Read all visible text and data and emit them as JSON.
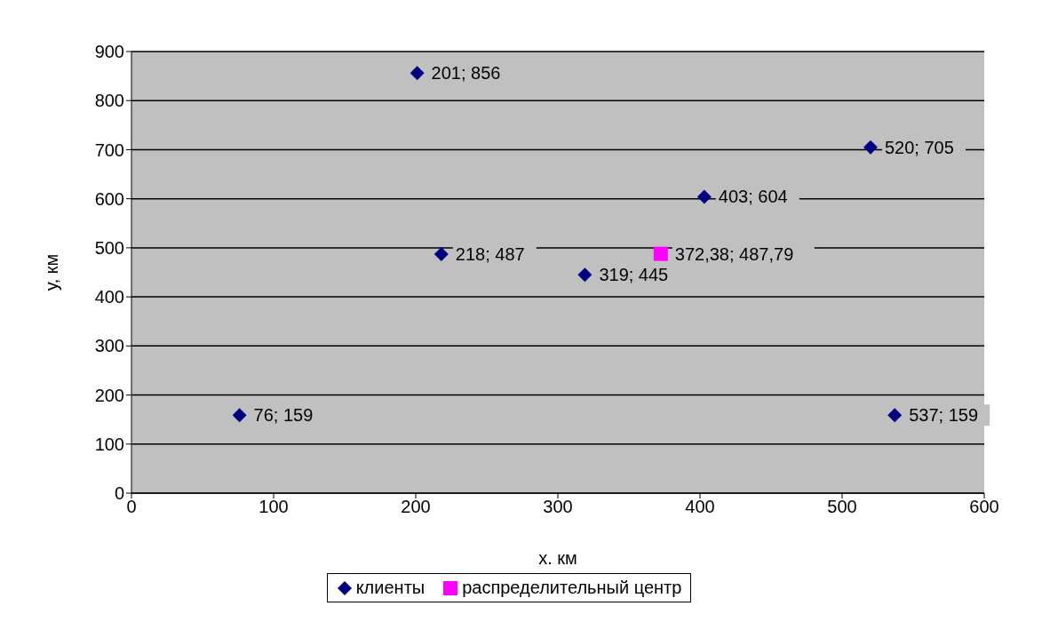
{
  "chart_data": {
    "type": "scatter",
    "xlabel": "x. км",
    "ylabel": "у, км",
    "xlim": [
      0,
      600
    ],
    "xticks": [
      0,
      100,
      200,
      300,
      400,
      500,
      600
    ],
    "ylim": [
      0,
      900
    ],
    "yticks": [
      0,
      100,
      200,
      300,
      400,
      500,
      600,
      700,
      800,
      900
    ],
    "grid": "y",
    "legend": "bottom",
    "series": [
      {
        "name": "клиенты",
        "color": "#000080",
        "marker": "diamond",
        "x": [
          76,
          201,
          218,
          319,
          403,
          520,
          537
        ],
        "values": [
          159,
          856,
          487,
          445,
          604,
          705,
          159
        ],
        "value_labels": [
          "76; 159",
          "201; 856",
          "218; 487",
          "319; 445",
          "403; 604",
          "520; 705",
          "537; 159"
        ]
      },
      {
        "name": "распределительный  центр",
        "color": "#ff00ff",
        "marker": "square",
        "x": [
          372.38
        ],
        "values": [
          487.79
        ],
        "value_labels": [
          "372,38; 487,79"
        ]
      }
    ]
  }
}
